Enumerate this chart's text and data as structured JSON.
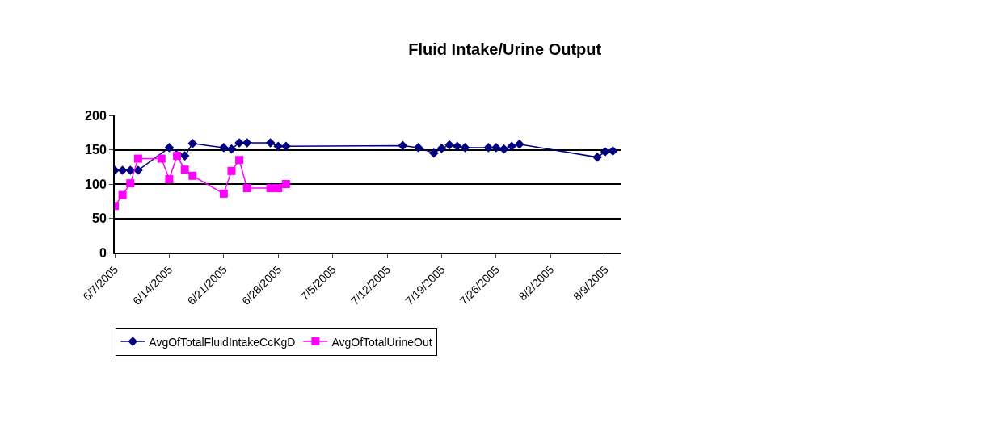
{
  "chart_data": {
    "type": "line",
    "title": "Fluid Intake/Urine Output",
    "xlim": [
      "2005-06-07",
      "2005-08-11"
    ],
    "xticks": [
      {
        "value": "2005-06-07",
        "label": "6/7/2005"
      },
      {
        "value": "2005-06-14",
        "label": "6/14/2005"
      },
      {
        "value": "2005-06-21",
        "label": "6/21/2005"
      },
      {
        "value": "2005-06-28",
        "label": "6/28/2005"
      },
      {
        "value": "2005-07-05",
        "label": "7/5/2005"
      },
      {
        "value": "2005-07-12",
        "label": "7/12/2005"
      },
      {
        "value": "2005-07-19",
        "label": "7/19/2005"
      },
      {
        "value": "2005-07-26",
        "label": "7/26/2005"
      },
      {
        "value": "2005-08-02",
        "label": "8/2/2005"
      },
      {
        "value": "2005-08-09",
        "label": "8/9/2005"
      }
    ],
    "ylim": [
      0,
      200
    ],
    "yticks": [
      0,
      50,
      100,
      150,
      200
    ],
    "grid": "y",
    "legend": "bottom",
    "series": [
      {
        "name": "AvgOfTotalFluidIntakeCcKgD",
        "color": "#000080",
        "marker": "diamond",
        "x": [
          "2005-06-07",
          "2005-06-08",
          "2005-06-09",
          "2005-06-10",
          "2005-06-14",
          "2005-06-16",
          "2005-06-17",
          "2005-06-21",
          "2005-06-22",
          "2005-06-23",
          "2005-06-24",
          "2005-06-27",
          "2005-06-28",
          "2005-06-29",
          "2005-07-14",
          "2005-07-16",
          "2005-07-18",
          "2005-07-19",
          "2005-07-20",
          "2005-07-21",
          "2005-07-22",
          "2005-07-25",
          "2005-07-26",
          "2005-07-27",
          "2005-07-28",
          "2005-07-29",
          "2005-08-08",
          "2005-08-09",
          "2005-08-10"
        ],
        "values": [
          120,
          120,
          120,
          120,
          153,
          141,
          159,
          153,
          151,
          160,
          160,
          160,
          155,
          155,
          156,
          153,
          145,
          152,
          157,
          155,
          153,
          153,
          153,
          151,
          155,
          158,
          139,
          147,
          148
        ]
      },
      {
        "name": "AvgOfTotalUrineOut",
        "color": "#ff00ff",
        "marker": "square",
        "x": [
          "2005-06-07",
          "2005-06-08",
          "2005-06-09",
          "2005-06-10",
          "2005-06-13",
          "2005-06-14",
          "2005-06-15",
          "2005-06-16",
          "2005-06-17",
          "2005-06-21",
          "2005-06-22",
          "2005-06-23",
          "2005-06-24",
          "2005-06-27",
          "2005-06-28",
          "2005-06-29"
        ],
        "values": [
          68,
          84,
          101,
          137,
          137,
          107,
          141,
          121,
          112,
          86,
          119,
          135,
          94,
          94,
          94,
          100
        ]
      }
    ]
  }
}
